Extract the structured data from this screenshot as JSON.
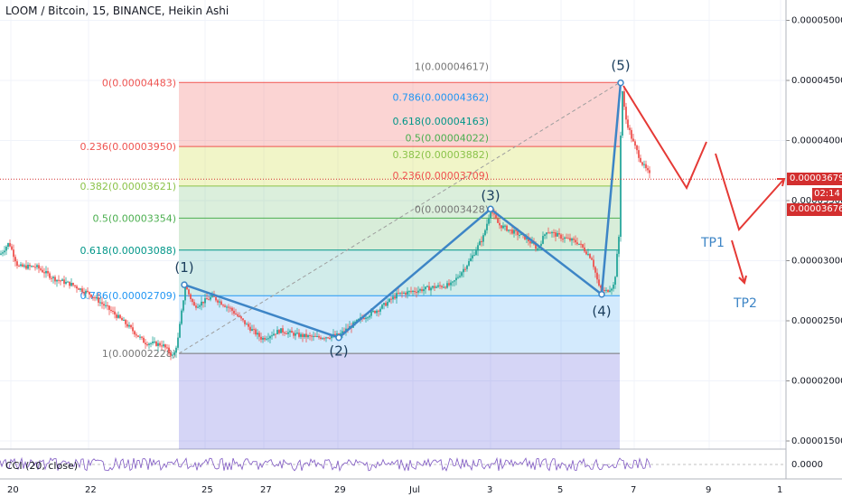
{
  "header": {
    "title": "LOOM / Bitcoin, 15, BINANCE, Heikin Ashi"
  },
  "indicator": {
    "label": "CCI (20, close)"
  },
  "tags": {
    "last_price": "0.00003679",
    "countdown": "02:14",
    "second_price": "0.00003676"
  },
  "colors": {
    "up_candle": "#26a69a",
    "down_candle": "#ef5350",
    "wave_line": "#3d85c6",
    "projection": "#e53935",
    "fib_red": "#ef5350",
    "fib_green": "#4caf50",
    "fib_blue": "#2196f3",
    "fib_gray": "#9e9e9e",
    "fib_purple": "#3f3fd6"
  },
  "chart_data": {
    "type": "candlestick",
    "title": "LOOM / Bitcoin, 15, BINANCE, Heikin Ashi",
    "ylim": [
      1.4e-05,
      5.2e-05
    ],
    "y_ticks": [
      "0.00005000",
      "0.00004500",
      "0.00004000",
      "0.00003500",
      "0.00003000",
      "0.00002500",
      "0.00002000",
      "0.00001500"
    ],
    "x_ticks": [
      "20",
      "22",
      "25",
      "27",
      "29",
      "Jul",
      "3",
      "5",
      "7",
      "9",
      "1"
    ],
    "grid": true,
    "price_path": [
      [
        0,
        3050
      ],
      [
        10,
        3150
      ],
      [
        20,
        2950
      ],
      [
        40,
        2950
      ],
      [
        60,
        2850
      ],
      [
        80,
        2800
      ],
      [
        100,
        2720
      ],
      [
        120,
        2600
      ],
      [
        140,
        2470
      ],
      [
        160,
        2320
      ],
      [
        180,
        2300
      ],
      [
        192,
        2200
      ],
      [
        197,
        2350
      ],
      [
        205,
        2790
      ],
      [
        215,
        2620
      ],
      [
        235,
        2700
      ],
      [
        255,
        2600
      ],
      [
        275,
        2450
      ],
      [
        290,
        2350
      ],
      [
        310,
        2420
      ],
      [
        330,
        2380
      ],
      [
        350,
        2360
      ],
      [
        375,
        2380
      ],
      [
        400,
        2520
      ],
      [
        420,
        2600
      ],
      [
        440,
        2720
      ],
      [
        460,
        2750
      ],
      [
        480,
        2780
      ],
      [
        500,
        2800
      ],
      [
        520,
        3000
      ],
      [
        535,
        3200
      ],
      [
        543,
        3420
      ],
      [
        552,
        3300
      ],
      [
        565,
        3250
      ],
      [
        580,
        3200
      ],
      [
        595,
        3100
      ],
      [
        605,
        3250
      ],
      [
        620,
        3200
      ],
      [
        640,
        3150
      ],
      [
        655,
        3020
      ],
      [
        663,
        2780
      ],
      [
        670,
        2740
      ],
      [
        680,
        2800
      ],
      [
        685,
        3200
      ],
      [
        688,
        4480
      ],
      [
        692,
        4200
      ],
      [
        700,
        4000
      ],
      [
        710,
        3820
      ],
      [
        720,
        3700
      ]
    ],
    "fib_retracement_left": [
      {
        "label": "0(0.00004483)",
        "value": 4.483e-05,
        "color": "#ef5350"
      },
      {
        "label": "0.236(0.00003950)",
        "value": 3.95e-05,
        "color": "#ef5350"
      },
      {
        "label": "0.382(0.00003621)",
        "value": 3.621e-05,
        "color": "#8bc34a"
      },
      {
        "label": "0.5(0.00003354)",
        "value": 3.354e-05,
        "color": "#4caf50"
      },
      {
        "label": "0.618(0.00003088)",
        "value": 3.088e-05,
        "color": "#009688"
      },
      {
        "label": "0.786(0.00002709)",
        "value": 2.709e-05,
        "color": "#2196f3"
      },
      {
        "label": "1(0.00002228)",
        "value": 2.228e-05,
        "color": "#757575"
      }
    ],
    "fib_extension_right": [
      {
        "label": "1(0.00004617)",
        "value": 4.617e-05,
        "color": "#757575"
      },
      {
        "label": "0.786(0.00004362)",
        "value": 4.362e-05,
        "color": "#2196f3"
      },
      {
        "label": "0.618(0.00004163)",
        "value": 4.163e-05,
        "color": "#009688"
      },
      {
        "label": "0.5(0.00004022)",
        "value": 4.022e-05,
        "color": "#4caf50"
      },
      {
        "label": "0.382(0.00003882)",
        "value": 3.882e-05,
        "color": "#8bc34a"
      },
      {
        "label": "0.236(0.00003709)",
        "value": 3.709e-05,
        "color": "#ef5350"
      },
      {
        "label": "0(0.00003428)",
        "value": 3.428e-05,
        "color": "#757575"
      }
    ],
    "elliott_waves": [
      {
        "label": "(1)",
        "value": 2.8e-05
      },
      {
        "label": "(2)",
        "value": 2.36e-05
      },
      {
        "label": "(3)",
        "value": 3.43e-05
      },
      {
        "label": "(4)",
        "value": 2.72e-05
      },
      {
        "label": "(5)",
        "value": 4.48e-05
      }
    ],
    "projection_labels": [
      "TP1",
      "TP2"
    ],
    "current_price": 3.679e-05
  }
}
